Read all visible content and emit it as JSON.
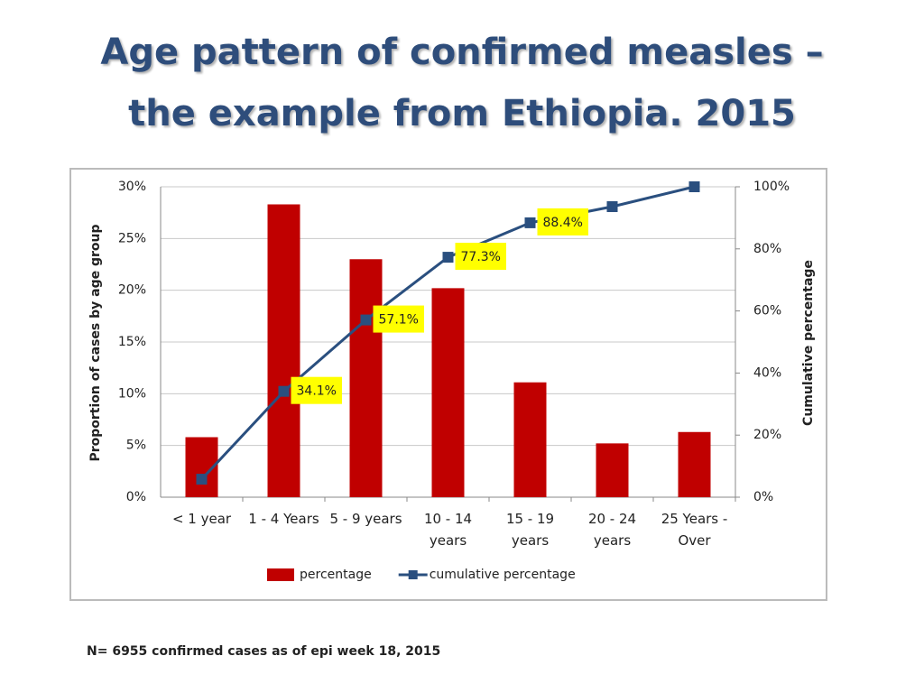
{
  "slide": {
    "title_lines": [
      "Age pattern of confirmed measles –",
      "the example from Ethiopia. 2015"
    ],
    "footnote": "N= 6955 confirmed cases as of epi week 18, 2015"
  },
  "chart_data": {
    "type": "bar-line",
    "y_label": "Proportion of cases by age group",
    "y2_label": "Cumulative percentage",
    "categories": [
      "< 1 year",
      "1 - 4 Years",
      "5 - 9 years",
      "10 - 14 years",
      "15 - 19 years",
      "20 - 24 years",
      "25 Years - Over"
    ],
    "series": [
      {
        "name": "percentage",
        "type": "bar",
        "color": "#c00000",
        "values": [
          5.8,
          28.3,
          23.0,
          20.2,
          11.1,
          5.2,
          6.3
        ]
      },
      {
        "name": "cumulative percentage",
        "type": "line",
        "axis": "y2",
        "color": "#2a4f7f",
        "values": [
          5.8,
          34.1,
          57.1,
          77.3,
          88.4,
          93.6,
          100
        ],
        "value_labels": [
          null,
          "34.1%",
          "57.1%",
          "77.3%",
          "88.4%",
          null,
          null
        ]
      }
    ],
    "ylim": [
      0,
      30
    ],
    "yticks": [
      {
        "value": 0,
        "label": "0%"
      },
      {
        "value": 5,
        "label": "5%"
      },
      {
        "value": 10,
        "label": "10%"
      },
      {
        "value": 15,
        "label": "15%"
      },
      {
        "value": 20,
        "label": "20%"
      },
      {
        "value": 25,
        "label": "25%"
      },
      {
        "value": 30,
        "label": "30%"
      }
    ],
    "y2lim": [
      0,
      100
    ],
    "y2ticks": [
      {
        "value": 0,
        "label": "0%"
      },
      {
        "value": 20,
        "label": "20%"
      },
      {
        "value": 40,
        "label": "40%"
      },
      {
        "value": 60,
        "label": "60%"
      },
      {
        "value": 80,
        "label": "80%"
      },
      {
        "value": 100,
        "label": "100%"
      }
    ],
    "grid": true,
    "legend": "bottom"
  }
}
